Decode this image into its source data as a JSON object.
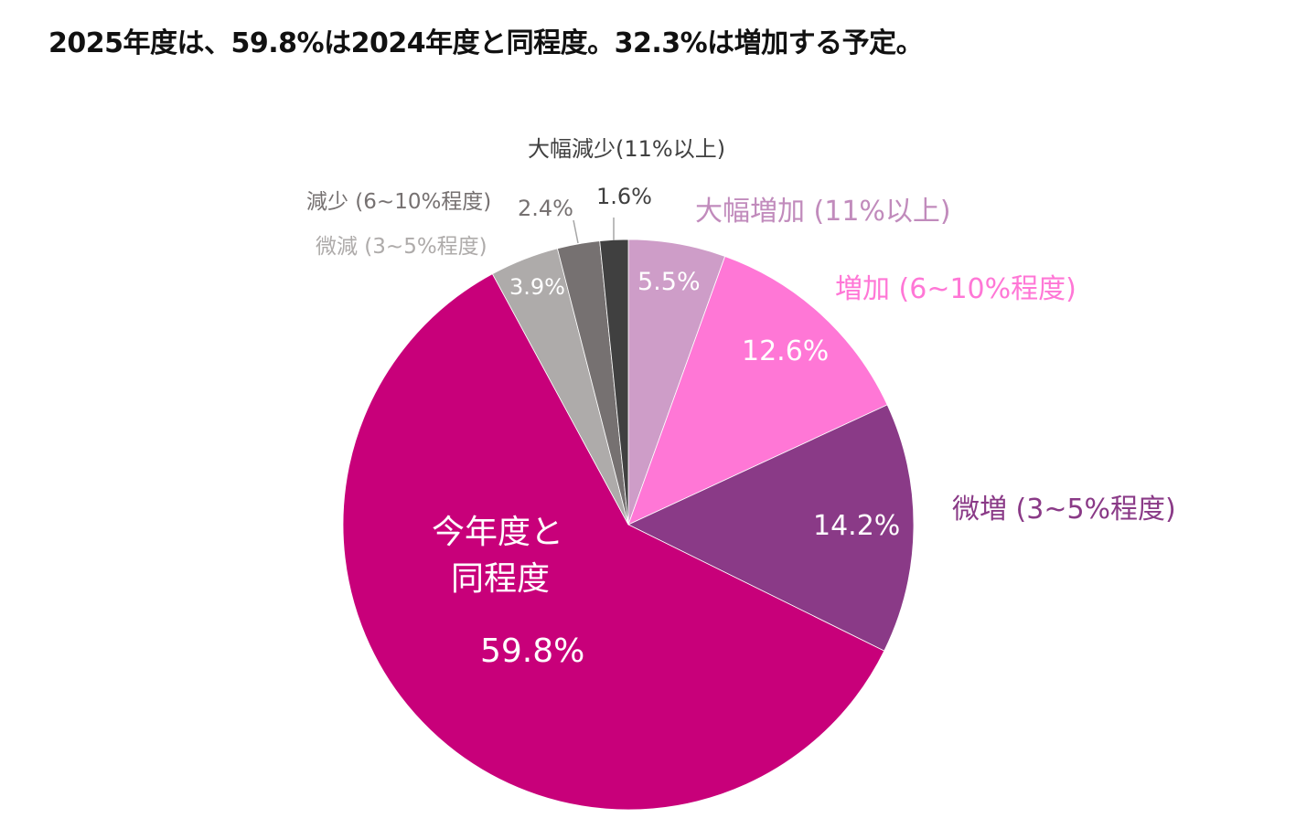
{
  "title": "2025年度は、59.8%は2024年度と同程度。32.3%は増加する予定。",
  "chart_data": {
    "type": "pie",
    "title": "2025年度は、59.8%は2024年度と同程度。32.3%は増加する予定。",
    "start_angle_deg": 0,
    "direction": "clockwise",
    "categories": [
      "大幅増加 (11%以上)",
      "増加 (6~10%程度)",
      "微増 (3~5%程度)",
      "今年度と同程度",
      "微減 (3~5%程度)",
      "減少 (6~10%程度)",
      "大幅減少(11%以上)"
    ],
    "values": [
      5.5,
      12.6,
      14.2,
      59.8,
      3.9,
      2.4,
      1.6
    ],
    "value_labels": [
      "5.5%",
      "12.6%",
      "14.2%",
      "59.8%",
      "3.9%",
      "2.4%",
      "1.6%"
    ],
    "colors": [
      "#CE9DC8",
      "#FF77D6",
      "#8A3A87",
      "#C8007A",
      "#AEABAA",
      "#767171",
      "#404040"
    ],
    "label_colors": [
      "#C18BBC",
      "#FF77D6",
      "#8A3A87",
      "#FFFFFF",
      "#AEABAA",
      "#767171",
      "#404040"
    ],
    "unit": "%",
    "legend": "none (direct labels)"
  },
  "labels": {
    "big_increase": "大幅増加 (11%以上)",
    "increase": "増加 (6~10%程度)",
    "slight_increase": "微増 (3~5%程度)",
    "same_line1": "今年度と",
    "same_line2": "同程度",
    "slight_decrease": "微減 (3~5%程度)",
    "decrease": "減少 (6~10%程度)",
    "big_decrease": "大幅減少(11%以上)"
  },
  "values": {
    "big_increase": "5.5%",
    "increase": "12.6%",
    "slight_increase": "14.2%",
    "same": "59.8%",
    "slight_decrease": "3.9%",
    "decrease": "2.4%",
    "big_decrease": "1.6%"
  }
}
